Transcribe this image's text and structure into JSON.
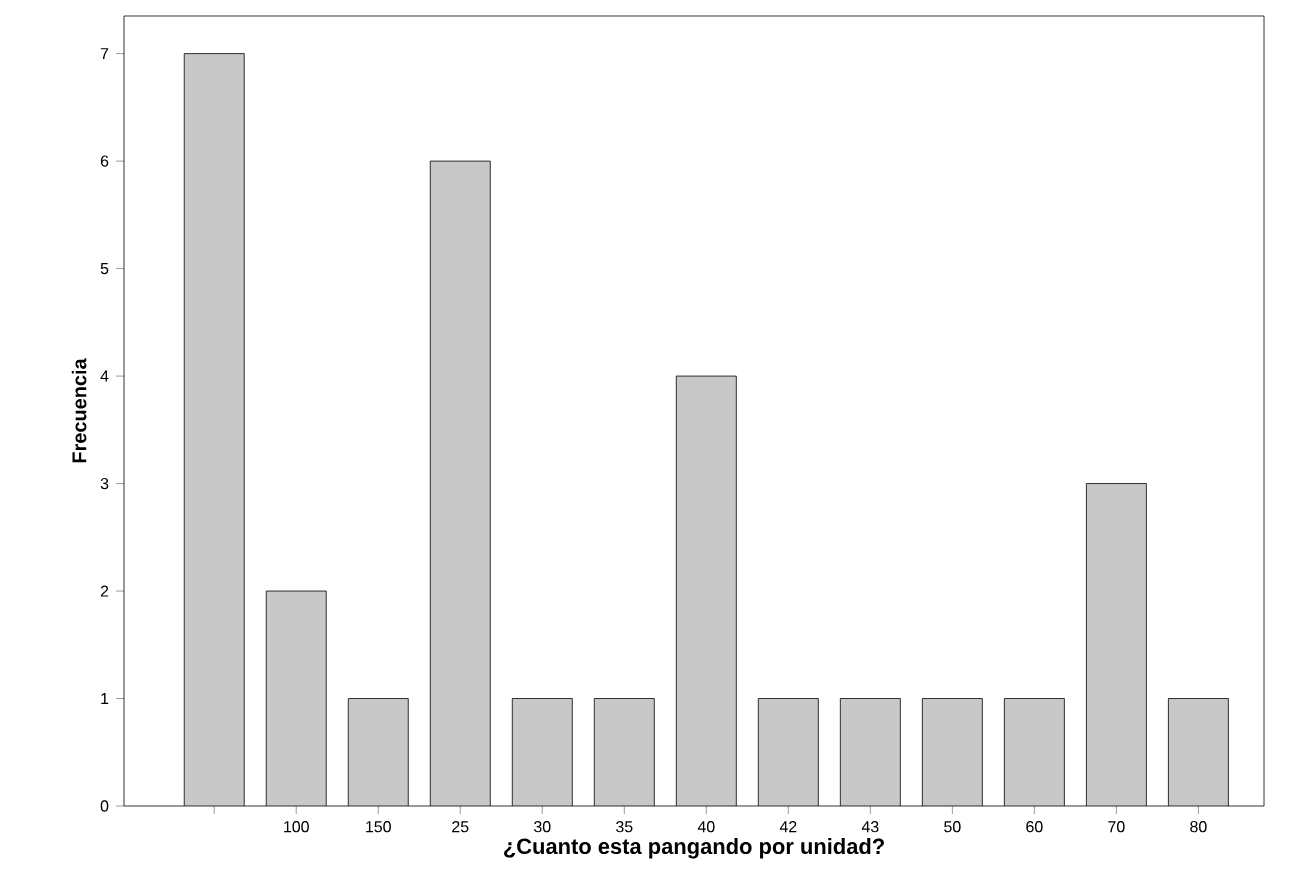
{
  "chart_data": {
    "type": "bar",
    "xlabel": "¿Cuanto esta pangando por unidad?",
    "ylabel": "Frecuencia",
    "categories": [
      null,
      "100",
      "150",
      "25",
      "30",
      "35",
      "40",
      "42",
      "43",
      "50",
      "60",
      "70",
      "80"
    ],
    "values": [
      7,
      2,
      1,
      6,
      1,
      1,
      4,
      1,
      1,
      1,
      1,
      3,
      1
    ],
    "color": "#c8c8c8",
    "ylim": [
      0,
      7.35
    ],
    "yticks": [
      0,
      1,
      2,
      3,
      4,
      5,
      6,
      7
    ],
    "grid": false
  }
}
